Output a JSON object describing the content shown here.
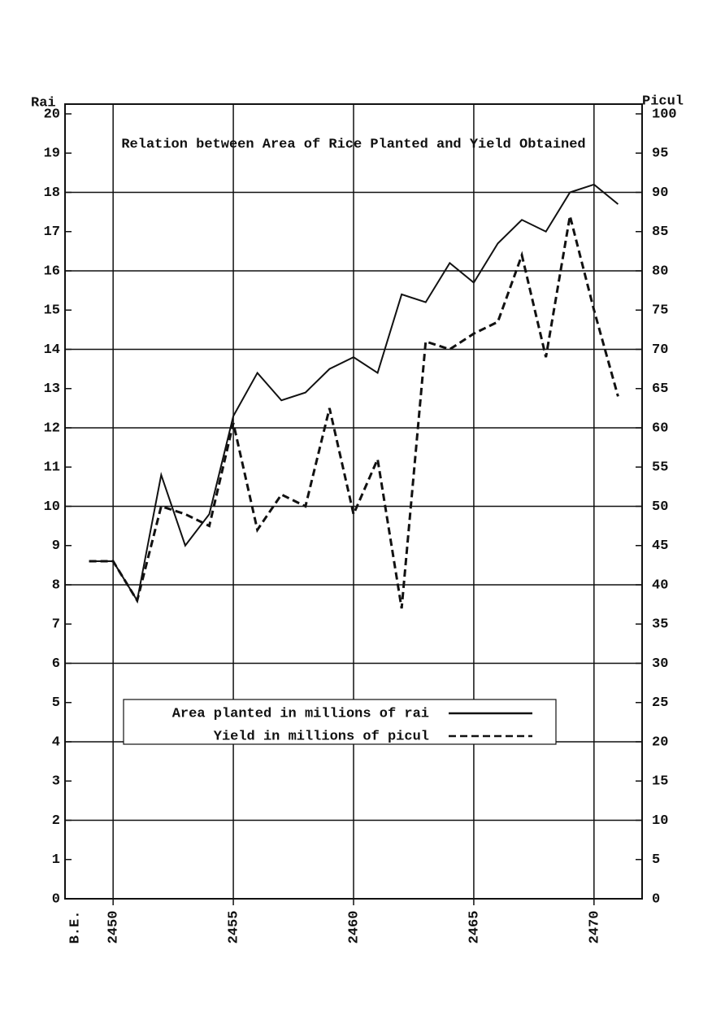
{
  "chart_data": {
    "type": "line",
    "title": "Relation between Area of Rice Planted and Yield Obtained",
    "y_label": "Rai",
    "y2_label": "Picul",
    "x_label": "B.E.",
    "x": [
      2449,
      2450,
      2451,
      2452,
      2453,
      2454,
      2455,
      2456,
      2457,
      2458,
      2459,
      2460,
      2461,
      2462,
      2463,
      2464,
      2465,
      2466,
      2467,
      2468,
      2469,
      2470,
      2471
    ],
    "series": [
      {
        "name": "Area planted in millions of rai",
        "color": "#111111",
        "dash": "none",
        "values": [
          8.6,
          8.6,
          7.6,
          10.8,
          9.0,
          9.8,
          12.3,
          13.4,
          12.7,
          12.9,
          13.5,
          13.8,
          13.4,
          15.4,
          15.2,
          16.2,
          15.7,
          16.7,
          17.3,
          17.0,
          18.0,
          18.2,
          17.7
        ]
      },
      {
        "name": "Yield in millions of picul",
        "color": "#111111",
        "dash": "9 5",
        "axis": "y2",
        "values": [
          43,
          43,
          38,
          50,
          49,
          47.5,
          60.6,
          47,
          51.5,
          50,
          62.5,
          49,
          56,
          37,
          71,
          70,
          72,
          73.5,
          82,
          69,
          87,
          75,
          64
        ]
      }
    ],
    "xlim": [
      2448,
      2472
    ],
    "xticks": [
      2450,
      2455,
      2460,
      2465,
      2470
    ],
    "ylim": [
      0,
      20
    ],
    "yticks": [
      0,
      1,
      2,
      3,
      4,
      5,
      6,
      7,
      8,
      9,
      10,
      11,
      12,
      13,
      14,
      15,
      16,
      17,
      18,
      19,
      20
    ],
    "ygrid": [
      2,
      4,
      6,
      8,
      10,
      12,
      14,
      16,
      18
    ],
    "y2lim": [
      0,
      100
    ],
    "y2ticks": [
      0,
      5,
      10,
      15,
      20,
      25,
      30,
      35,
      40,
      45,
      50,
      55,
      60,
      65,
      70,
      75,
      80,
      85,
      90,
      95,
      100
    ]
  }
}
